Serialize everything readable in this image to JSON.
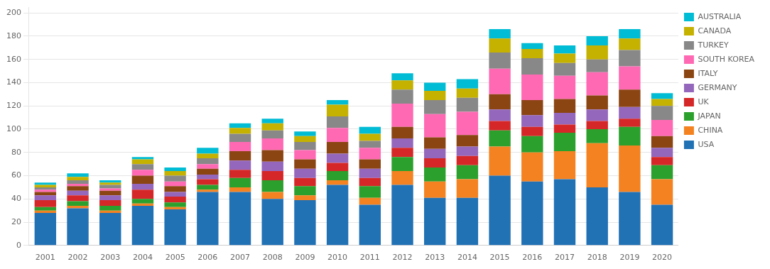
{
  "chart_data": {
    "type": "bar",
    "categories": [
      "2001",
      "2002",
      "2003",
      "2004",
      "2005",
      "2006",
      "2007",
      "2008",
      "2009",
      "2010",
      "2011",
      "2012",
      "2013",
      "2014",
      "2015",
      "2016",
      "2017",
      "2018",
      "2019",
      "2020"
    ],
    "series": [
      {
        "name": "USA",
        "color": "#2171b5",
        "values": [
          28,
          32,
          28,
          34,
          31,
          46,
          46,
          40,
          39,
          52,
          35,
          52,
          41,
          41,
          60,
          55,
          57,
          50,
          46,
          35
        ]
      },
      {
        "name": "CHINA",
        "color": "#f58220",
        "values": [
          2,
          2,
          2,
          2,
          2,
          2,
          4,
          6,
          4,
          4,
          6,
          12,
          14,
          16,
          25,
          25,
          24,
          38,
          40,
          22
        ]
      },
      {
        "name": "JAPAN",
        "color": "#2ca02c",
        "values": [
          3,
          4,
          4,
          4,
          4,
          4,
          8,
          10,
          8,
          8,
          10,
          12,
          12,
          12,
          14,
          14,
          16,
          12,
          16,
          12
        ]
      },
      {
        "name": "UK",
        "color": "#d62728",
        "values": [
          6,
          5,
          5,
          8,
          5,
          5,
          7,
          8,
          7,
          7,
          7,
          8,
          8,
          8,
          8,
          8,
          7,
          7,
          7,
          7
        ]
      },
      {
        "name": "GERMANY",
        "color": "#9467bd",
        "values": [
          4,
          4,
          4,
          5,
          4,
          4,
          8,
          8,
          8,
          8,
          8,
          8,
          8,
          8,
          10,
          10,
          10,
          10,
          10,
          8
        ]
      },
      {
        "name": "ITALY",
        "color": "#8b4513",
        "values": [
          3,
          4,
          4,
          7,
          5,
          5,
          8,
          10,
          8,
          10,
          8,
          10,
          10,
          10,
          13,
          13,
          12,
          12,
          15,
          10
        ]
      },
      {
        "name": "SOUTH KOREA",
        "color": "#ff69b4",
        "values": [
          2,
          2,
          2,
          5,
          4,
          4,
          8,
          10,
          8,
          12,
          10,
          20,
          20,
          20,
          22,
          22,
          20,
          20,
          20,
          14
        ]
      },
      {
        "name": "TURKEY",
        "color": "#888888",
        "values": [
          2,
          3,
          3,
          5,
          5,
          5,
          7,
          7,
          7,
          10,
          6,
          12,
          12,
          12,
          14,
          14,
          11,
          11,
          14,
          12
        ]
      },
      {
        "name": "CANADA",
        "color": "#c5b100",
        "values": [
          2,
          3,
          2,
          4,
          4,
          4,
          5,
          6,
          5,
          10,
          6,
          8,
          8,
          8,
          12,
          8,
          8,
          12,
          10,
          6
        ]
      },
      {
        "name": "AUSTRALIA",
        "color": "#00bcd4",
        "values": [
          2,
          3,
          2,
          2,
          3,
          5,
          4,
          4,
          4,
          4,
          6,
          6,
          7,
          8,
          8,
          5,
          7,
          8,
          8,
          5
        ]
      }
    ],
    "stacked": true,
    "ylim": [
      0,
      205
    ],
    "yticks": [
      0,
      20,
      40,
      60,
      80,
      100,
      120,
      140,
      160,
      180,
      200
    ],
    "grid": true,
    "legend": "right"
  }
}
